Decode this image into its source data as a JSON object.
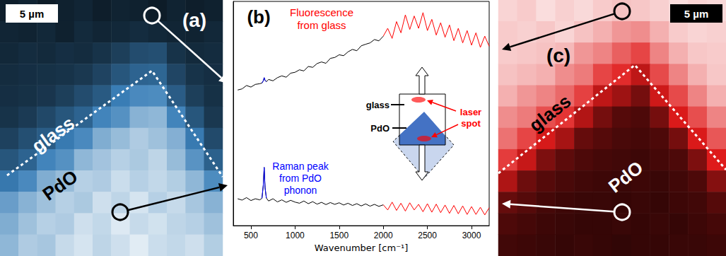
{
  "chart_data": [
    {
      "type": "heatmap",
      "title": "(a)",
      "color": "#3a7fb8",
      "tick_labels": false,
      "cells": [
        [
          0.06,
          0.08,
          0.05,
          0.07,
          0.09,
          0.06,
          0.08,
          0.07,
          0.05,
          0.08,
          0.06,
          0.07
        ],
        [
          0.09,
          0.08,
          0.1,
          0.07,
          0.11,
          0.09,
          0.1,
          0.12,
          0.1,
          0.09,
          0.08,
          0.1
        ],
        [
          0.1,
          0.12,
          0.11,
          0.13,
          0.12,
          0.15,
          0.2,
          0.26,
          0.27,
          0.15,
          0.11,
          0.12
        ],
        [
          0.12,
          0.13,
          0.14,
          0.15,
          0.17,
          0.22,
          0.3,
          0.36,
          0.37,
          0.23,
          0.15,
          0.13
        ],
        [
          0.13,
          0.14,
          0.16,
          0.2,
          0.26,
          0.32,
          0.47,
          0.52,
          0.53,
          0.33,
          0.2,
          0.14
        ],
        [
          0.15,
          0.18,
          0.24,
          0.3,
          0.36,
          0.5,
          0.55,
          0.68,
          0.7,
          0.5,
          0.3,
          0.17
        ],
        [
          0.21,
          0.27,
          0.33,
          0.46,
          0.52,
          0.66,
          0.72,
          0.78,
          0.74,
          0.67,
          0.46,
          0.25
        ],
        [
          0.3,
          0.36,
          0.5,
          0.55,
          0.7,
          0.75,
          0.8,
          0.77,
          0.82,
          0.72,
          0.56,
          0.35
        ],
        [
          0.45,
          0.52,
          0.66,
          0.72,
          0.8,
          0.78,
          0.85,
          0.8,
          0.83,
          0.79,
          0.7,
          0.53
        ],
        [
          0.6,
          0.68,
          0.74,
          0.8,
          0.77,
          0.86,
          0.82,
          0.88,
          0.8,
          0.84,
          0.76,
          0.68
        ],
        [
          0.66,
          0.74,
          0.8,
          0.78,
          0.86,
          0.83,
          0.9,
          0.84,
          0.87,
          0.82,
          0.8,
          0.74
        ],
        [
          0.7,
          0.78,
          0.76,
          0.84,
          0.88,
          0.82,
          0.86,
          0.91,
          0.85,
          0.83,
          0.86,
          0.79
        ]
      ],
      "annotations": [
        {
          "text": "5 µm",
          "color": "#000000"
        },
        {
          "text": "glass",
          "color": "#ffffff"
        },
        {
          "text": "PdO",
          "color": "#000000"
        }
      ]
    },
    {
      "type": "line",
      "title": "(b)",
      "xlabel": "Wavenumber [cm⁻¹]",
      "xlim": [
        300,
        3200
      ],
      "xticks": [
        500,
        1000,
        1500,
        2000,
        2500,
        3000
      ],
      "ylim": [
        0,
        100
      ],
      "tick_labels": "x",
      "series": [
        {
          "color": "#000000",
          "x": [
            350,
            400,
            450,
            500,
            550,
            600,
            625,
            640,
            650,
            660,
            675,
            700,
            750,
            800,
            850,
            900,
            950,
            1000,
            1050,
            1100,
            1150,
            1200,
            1250,
            1300,
            1350,
            1400,
            1450,
            1500,
            1550,
            1600,
            1650,
            1700,
            1750,
            1800,
            1850,
            1900,
            1950,
            2000
          ],
          "values": [
            60.5,
            61,
            62.5,
            61.8,
            63,
            63.3,
            63.6,
            64.6,
            66,
            64.8,
            64.2,
            65.2,
            64.6,
            66,
            66.8,
            66.2,
            68,
            68.4,
            69.5,
            69,
            71,
            70.6,
            72.3,
            73,
            72.4,
            74.6,
            75,
            76.2,
            75.8,
            77.5,
            78.6,
            78,
            80.2,
            80.9,
            81.5,
            83,
            82.4,
            84.5
          ]
        },
        {
          "color": "#ff0000",
          "x": [
            2000,
            2050,
            2100,
            2150,
            2200,
            2250,
            2300,
            2350,
            2400,
            2450,
            2500,
            2550,
            2600,
            2650,
            2700,
            2750,
            2800,
            2850,
            2900,
            2950,
            3000,
            3050,
            3100,
            3150,
            3200
          ],
          "values": [
            84.5,
            88,
            83.5,
            91,
            86,
            94,
            87.5,
            93.5,
            88,
            95,
            87,
            92,
            85,
            90.5,
            84,
            89.5,
            82.5,
            88,
            81.5,
            87,
            80.5,
            86,
            79.5,
            84.5,
            80
          ]
        },
        {
          "color": "#0000ff",
          "x": [
            625,
            640,
            650,
            660,
            675
          ],
          "values": [
            63.6,
            64.6,
            66,
            64.8,
            64.2
          ]
        },
        {
          "color": "#000000",
          "x": [
            350,
            400,
            450,
            500,
            550,
            600,
            625,
            640,
            650,
            660,
            675,
            700,
            750,
            800,
            850,
            900,
            950,
            1000,
            1050,
            1100,
            1150,
            1200,
            1250,
            1300,
            1350,
            1400,
            1450,
            1500,
            1550,
            1600,
            1650,
            1700,
            1750,
            1800,
            1850,
            1900,
            1950,
            2000
          ],
          "values": [
            12,
            11.4,
            12.5,
            11.2,
            12,
            11.5,
            12.2,
            18,
            26,
            17,
            12.3,
            11,
            12,
            10.6,
            11.5,
            10.4,
            11.3,
            10.5,
            10,
            11,
            9.8,
            10.7,
            9.6,
            10.4,
            9.4,
            10.3,
            9.5,
            10.2,
            9.2,
            10,
            9,
            9.8,
            8.8,
            9.7,
            8.7,
            9.5,
            8.6,
            9.3
          ]
        },
        {
          "color": "#ff0000",
          "x": [
            2000,
            2050,
            2100,
            2150,
            2200,
            2250,
            2300,
            2350,
            2400,
            2450,
            2500,
            2550,
            2600,
            2650,
            2700,
            2750,
            2800,
            2850,
            2900,
            2950,
            3000,
            3050,
            3100,
            3150,
            3200
          ],
          "values": [
            9.3,
            7,
            10.5,
            6.8,
            10,
            6.5,
            10.2,
            7,
            9.5,
            6.2,
            9.8,
            6,
            9.6,
            5.8,
            9.2,
            5.5,
            9,
            5.3,
            8.8,
            5,
            8.5,
            5,
            8.2,
            4.8,
            8
          ]
        },
        {
          "color": "#0000ff",
          "x": [
            625,
            640,
            650,
            660,
            675
          ],
          "values": [
            12.2,
            18,
            26,
            17,
            12.3
          ]
        }
      ],
      "annotations": [
        {
          "text": "Fluorescence from glass",
          "color": "#ff0000"
        },
        {
          "text": "Raman peak from PdO phonon",
          "color": "#0000ff"
        },
        {
          "text": "glass",
          "color": "#000000"
        },
        {
          "text": "PdO",
          "color": "#000000"
        },
        {
          "text": "laser spot",
          "color": "#ff0000"
        }
      ]
    },
    {
      "type": "heatmap",
      "title": "(c)",
      "color": "#e01b1b",
      "tick_labels": false,
      "cells": [
        [
          0.88,
          0.86,
          0.9,
          0.87,
          0.89,
          0.86,
          0.84,
          0.85,
          0.87,
          0.9,
          0.88,
          0.89
        ],
        [
          0.86,
          0.87,
          0.85,
          0.88,
          0.84,
          0.8,
          0.74,
          0.72,
          0.8,
          0.86,
          0.88,
          0.87
        ],
        [
          0.86,
          0.85,
          0.84,
          0.82,
          0.74,
          0.7,
          0.62,
          0.56,
          0.7,
          0.8,
          0.85,
          0.86
        ],
        [
          0.84,
          0.82,
          0.8,
          0.72,
          0.68,
          0.56,
          0.5,
          0.38,
          0.57,
          0.7,
          0.8,
          0.85
        ],
        [
          0.8,
          0.74,
          0.7,
          0.64,
          0.55,
          0.38,
          0.3,
          0.2,
          0.42,
          0.57,
          0.7,
          0.8
        ],
        [
          0.72,
          0.68,
          0.58,
          0.52,
          0.35,
          0.2,
          0.12,
          0.1,
          0.2,
          0.45,
          0.58,
          0.7
        ],
        [
          0.66,
          0.56,
          0.44,
          0.32,
          0.16,
          0.12,
          0.09,
          0.08,
          0.1,
          0.2,
          0.45,
          0.6
        ],
        [
          0.54,
          0.4,
          0.22,
          0.14,
          0.1,
          0.08,
          0.07,
          0.06,
          0.08,
          0.1,
          0.22,
          0.46
        ],
        [
          0.34,
          0.18,
          0.12,
          0.09,
          0.07,
          0.06,
          0.05,
          0.06,
          0.05,
          0.07,
          0.1,
          0.24
        ],
        [
          0.16,
          0.12,
          0.08,
          0.06,
          0.05,
          0.05,
          0.04,
          0.05,
          0.04,
          0.06,
          0.07,
          0.12
        ],
        [
          0.1,
          0.08,
          0.06,
          0.05,
          0.04,
          0.04,
          0.05,
          0.04,
          0.05,
          0.04,
          0.06,
          0.08
        ],
        [
          0.07,
          0.06,
          0.05,
          0.04,
          0.05,
          0.04,
          0.03,
          0.04,
          0.04,
          0.05,
          0.05,
          0.06
        ]
      ],
      "annotations": [
        {
          "text": "5 µm",
          "color": "#ffffff"
        },
        {
          "text": "glass",
          "color": "#000000"
        },
        {
          "text": "PdO",
          "color": "#ffffff"
        }
      ]
    }
  ]
}
